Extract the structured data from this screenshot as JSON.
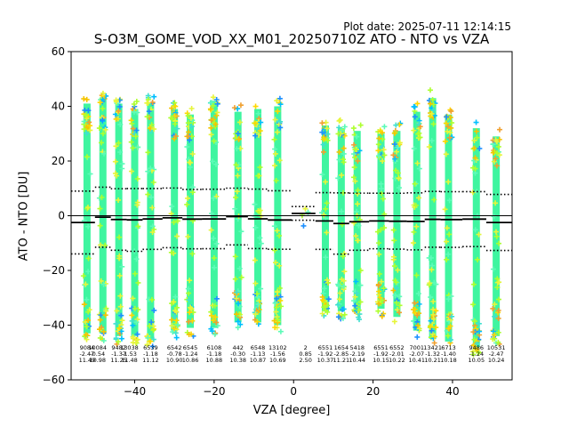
{
  "header": {
    "plot_date": "Plot date: 2025-07-11 12:14:15",
    "title": "S-O3M_GOME_VOD_XX_M01_20250710Z ATO - NTO vs VZA"
  },
  "chart_data": {
    "type": "scatter",
    "title": "S-O3M_GOME_VOD_XX_M01_20250710Z ATO - NTO vs VZA",
    "xlabel": "VZA [degree]",
    "ylabel": "ATO - NTO [DU]",
    "xlim": [
      -56,
      55
    ],
    "ylim": [
      -60,
      60
    ],
    "xticks": [
      -40,
      -20,
      0,
      20,
      40
    ],
    "yticks": [
      -60,
      -40,
      -20,
      0,
      20,
      40,
      60
    ],
    "grid": false,
    "zero_line": 0,
    "bins": [
      {
        "x": -52,
        "count": "9084",
        "mean": "-2.47",
        "std": "11.49",
        "ymin": -46,
        "ymax": 44,
        "stats_row": 0
      },
      {
        "x": -48,
        "count": "10084",
        "mean": "-0.54",
        "std": "10.98",
        "ymin": -46,
        "ymax": 46,
        "stats_row": 1
      },
      {
        "x": -44,
        "count": "9482",
        "mean": "-1.37",
        "std": "11.25",
        "ymin": -47,
        "ymax": 44,
        "stats_row": 0
      },
      {
        "x": -40,
        "count": "13038",
        "mean": "-1.53",
        "std": "11.48",
        "ymin": -47,
        "ymax": 42,
        "stats_row": 1
      },
      {
        "x": -36,
        "count": "6539",
        "mean": "-1.18",
        "std": "11.12",
        "ymin": -48,
        "ymax": 44,
        "stats_row": 0
      },
      {
        "x": -30,
        "count": "6542",
        "mean": "-0.78",
        "std": "10.90",
        "ymin": -45,
        "ymax": 42,
        "stats_row": 0
      },
      {
        "x": -26,
        "count": "6545",
        "mean": "-1.24",
        "std": "10.86",
        "ymin": -44,
        "ymax": 40,
        "stats_row": 0
      },
      {
        "x": -20,
        "count": "6108",
        "mean": "-1.18",
        "std": "10.88",
        "ymin": -44,
        "ymax": 45,
        "stats_row": 0
      },
      {
        "x": -14,
        "count": "442",
        "mean": "-0.30",
        "std": "10.38",
        "ymin": -42,
        "ymax": 41,
        "stats_row": 0
      },
      {
        "x": -9,
        "count": "6548",
        "mean": "-1.13",
        "std": "10.87",
        "ymin": -42,
        "ymax": 42,
        "stats_row": 0
      },
      {
        "x": -4,
        "count": "13102",
        "mean": "-1.56",
        "std": "10.69",
        "ymin": -43,
        "ymax": 43,
        "stats_row": 0
      },
      {
        "x": 3,
        "count": "2",
        "mean": "0.85",
        "std": "2.50",
        "ymin": -1,
        "ymax": 3,
        "stats_row": 0
      },
      {
        "x": 8,
        "count": "6551",
        "mean": "-1.92",
        "std": "10.37",
        "ymin": -38,
        "ymax": 36,
        "stats_row": 0
      },
      {
        "x": 12,
        "count": "1654",
        "mean": "-2.85",
        "std": "11.21",
        "ymin": -38,
        "ymax": 35,
        "stats_row": 0
      },
      {
        "x": 16,
        "count": "5418",
        "mean": "-2.19",
        "std": "10.44",
        "ymin": -38,
        "ymax": 34,
        "stats_row": 0
      },
      {
        "x": 22,
        "count": "6551",
        "mean": "-1.92",
        "std": "10.15",
        "ymin": -37,
        "ymax": 33,
        "stats_row": 0
      },
      {
        "x": 26,
        "count": "6552",
        "mean": "-2.01",
        "std": "10.22",
        "ymin": -40,
        "ymax": 34,
        "stats_row": 0
      },
      {
        "x": 31,
        "count": "7001",
        "mean": "-2.07",
        "std": "10.41",
        "ymin": -45,
        "ymax": 41,
        "stats_row": 0
      },
      {
        "x": 35,
        "count": "13421",
        "mean": "-1.32",
        "std": "10.21",
        "ymin": -48,
        "ymax": 46,
        "stats_row": 0
      },
      {
        "x": 39,
        "count": "6713",
        "mean": "-1.40",
        "std": "10.18",
        "ymin": -49,
        "ymax": 40,
        "stats_row": 0
      },
      {
        "x": 46,
        "count": "9486",
        "mean": "-1.24",
        "std": "10.05",
        "ymin": -51,
        "ymax": 35,
        "stats_row": 0
      },
      {
        "x": 51,
        "count": "10531",
        "mean": "-2.47",
        "std": "10.24",
        "ymin": -47,
        "ymax": 32,
        "stats_row": 0
      }
    ],
    "colors": {
      "core": "#3ff5a0",
      "scatter_points": [
        "#5dfbb8",
        "#adff2f",
        "#e6f53a",
        "#ffd700",
        "#f5c400",
        "#00bfff",
        "#1e90ff",
        "#40e0d0",
        "#f0a030"
      ],
      "mean_line": "#000000",
      "std_lines": "#000000"
    }
  }
}
